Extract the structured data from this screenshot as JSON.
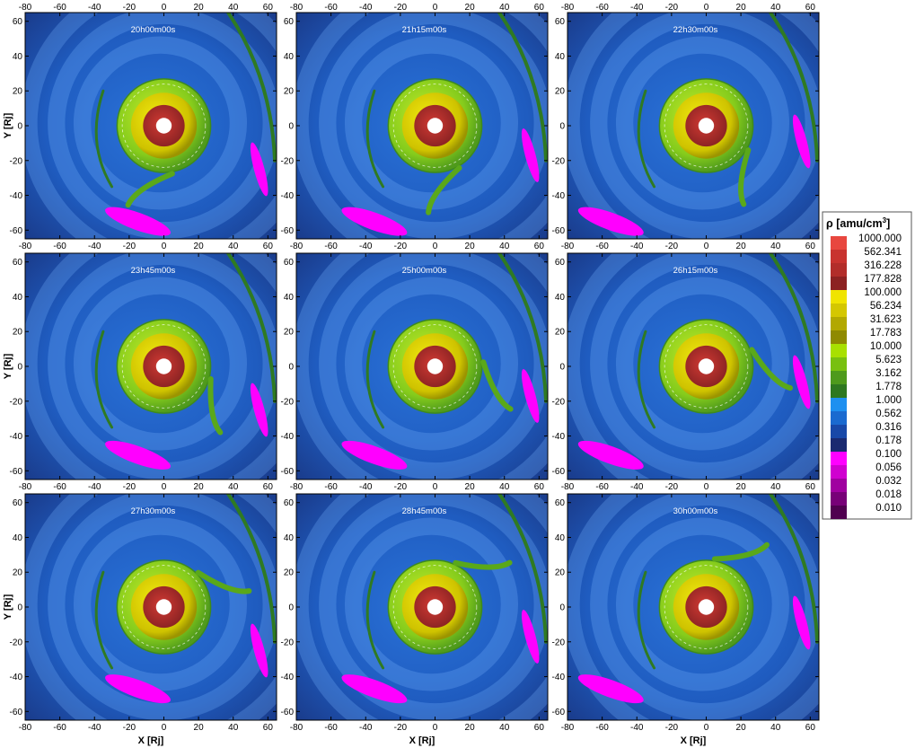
{
  "chart_data": {
    "type": "heatmap",
    "xlabel": "X [Rj]",
    "ylabel": "Y [Rj]",
    "xlim": [
      -80,
      65
    ],
    "ylim": [
      -65,
      65
    ],
    "x_ticks": [
      -80,
      -60,
      -40,
      -20,
      0,
      20,
      40,
      60
    ],
    "y_ticks": [
      -60,
      -40,
      -20,
      0,
      20,
      40,
      60
    ],
    "colorbar": {
      "title": "ρ [amu/cm",
      "title_sup": "3",
      "title_end": "]",
      "levels": [
        {
          "label": "1000.000",
          "color": "#e8473f"
        },
        {
          "label": "562.341",
          "color": "#c8332f"
        },
        {
          "label": "316.228",
          "color": "#b22d2a"
        },
        {
          "label": "177.828",
          "color": "#8c2222"
        },
        {
          "label": "100.000",
          "color": "#f0e400"
        },
        {
          "label": "56.234",
          "color": "#d4c700"
        },
        {
          "label": "31.623",
          "color": "#b2a800"
        },
        {
          "label": "17.783",
          "color": "#8f8a00"
        },
        {
          "label": "10.000",
          "color": "#a8e000"
        },
        {
          "label": "5.623",
          "color": "#78c010"
        },
        {
          "label": "3.162",
          "color": "#4e9a1c"
        },
        {
          "label": "1.778",
          "color": "#2e7820"
        },
        {
          "label": "1.000",
          "color": "#1e90f0"
        },
        {
          "label": "0.562",
          "color": "#1a6ad0"
        },
        {
          "label": "0.316",
          "color": "#1848a8"
        },
        {
          "label": "0.178",
          "color": "#1a2a70"
        },
        {
          "label": "0.100",
          "color": "#ff00ff"
        },
        {
          "label": "0.056",
          "color": "#d000d0"
        },
        {
          "label": "0.032",
          "color": "#a000a0"
        },
        {
          "label": "0.018",
          "color": "#780078"
        },
        {
          "label": "0.010",
          "color": "#500050"
        }
      ]
    },
    "panels": [
      {
        "time": "20h00m00s",
        "tail_angle": 280
      },
      {
        "time": "21h15m00s",
        "tail_angle": 300
      },
      {
        "time": "22h30m00s",
        "tail_angle": 330
      },
      {
        "time": "23h45m00s",
        "tail_angle": 345
      },
      {
        "time": "25h00m00s",
        "tail_angle": 5
      },
      {
        "time": "26h15m00s",
        "tail_angle": 20
      },
      {
        "time": "27h30m00s",
        "tail_angle": 45
      },
      {
        "time": "28h45m00s",
        "tail_angle": 65
      },
      {
        "time": "30h00m00s",
        "tail_angle": 80
      }
    ]
  }
}
